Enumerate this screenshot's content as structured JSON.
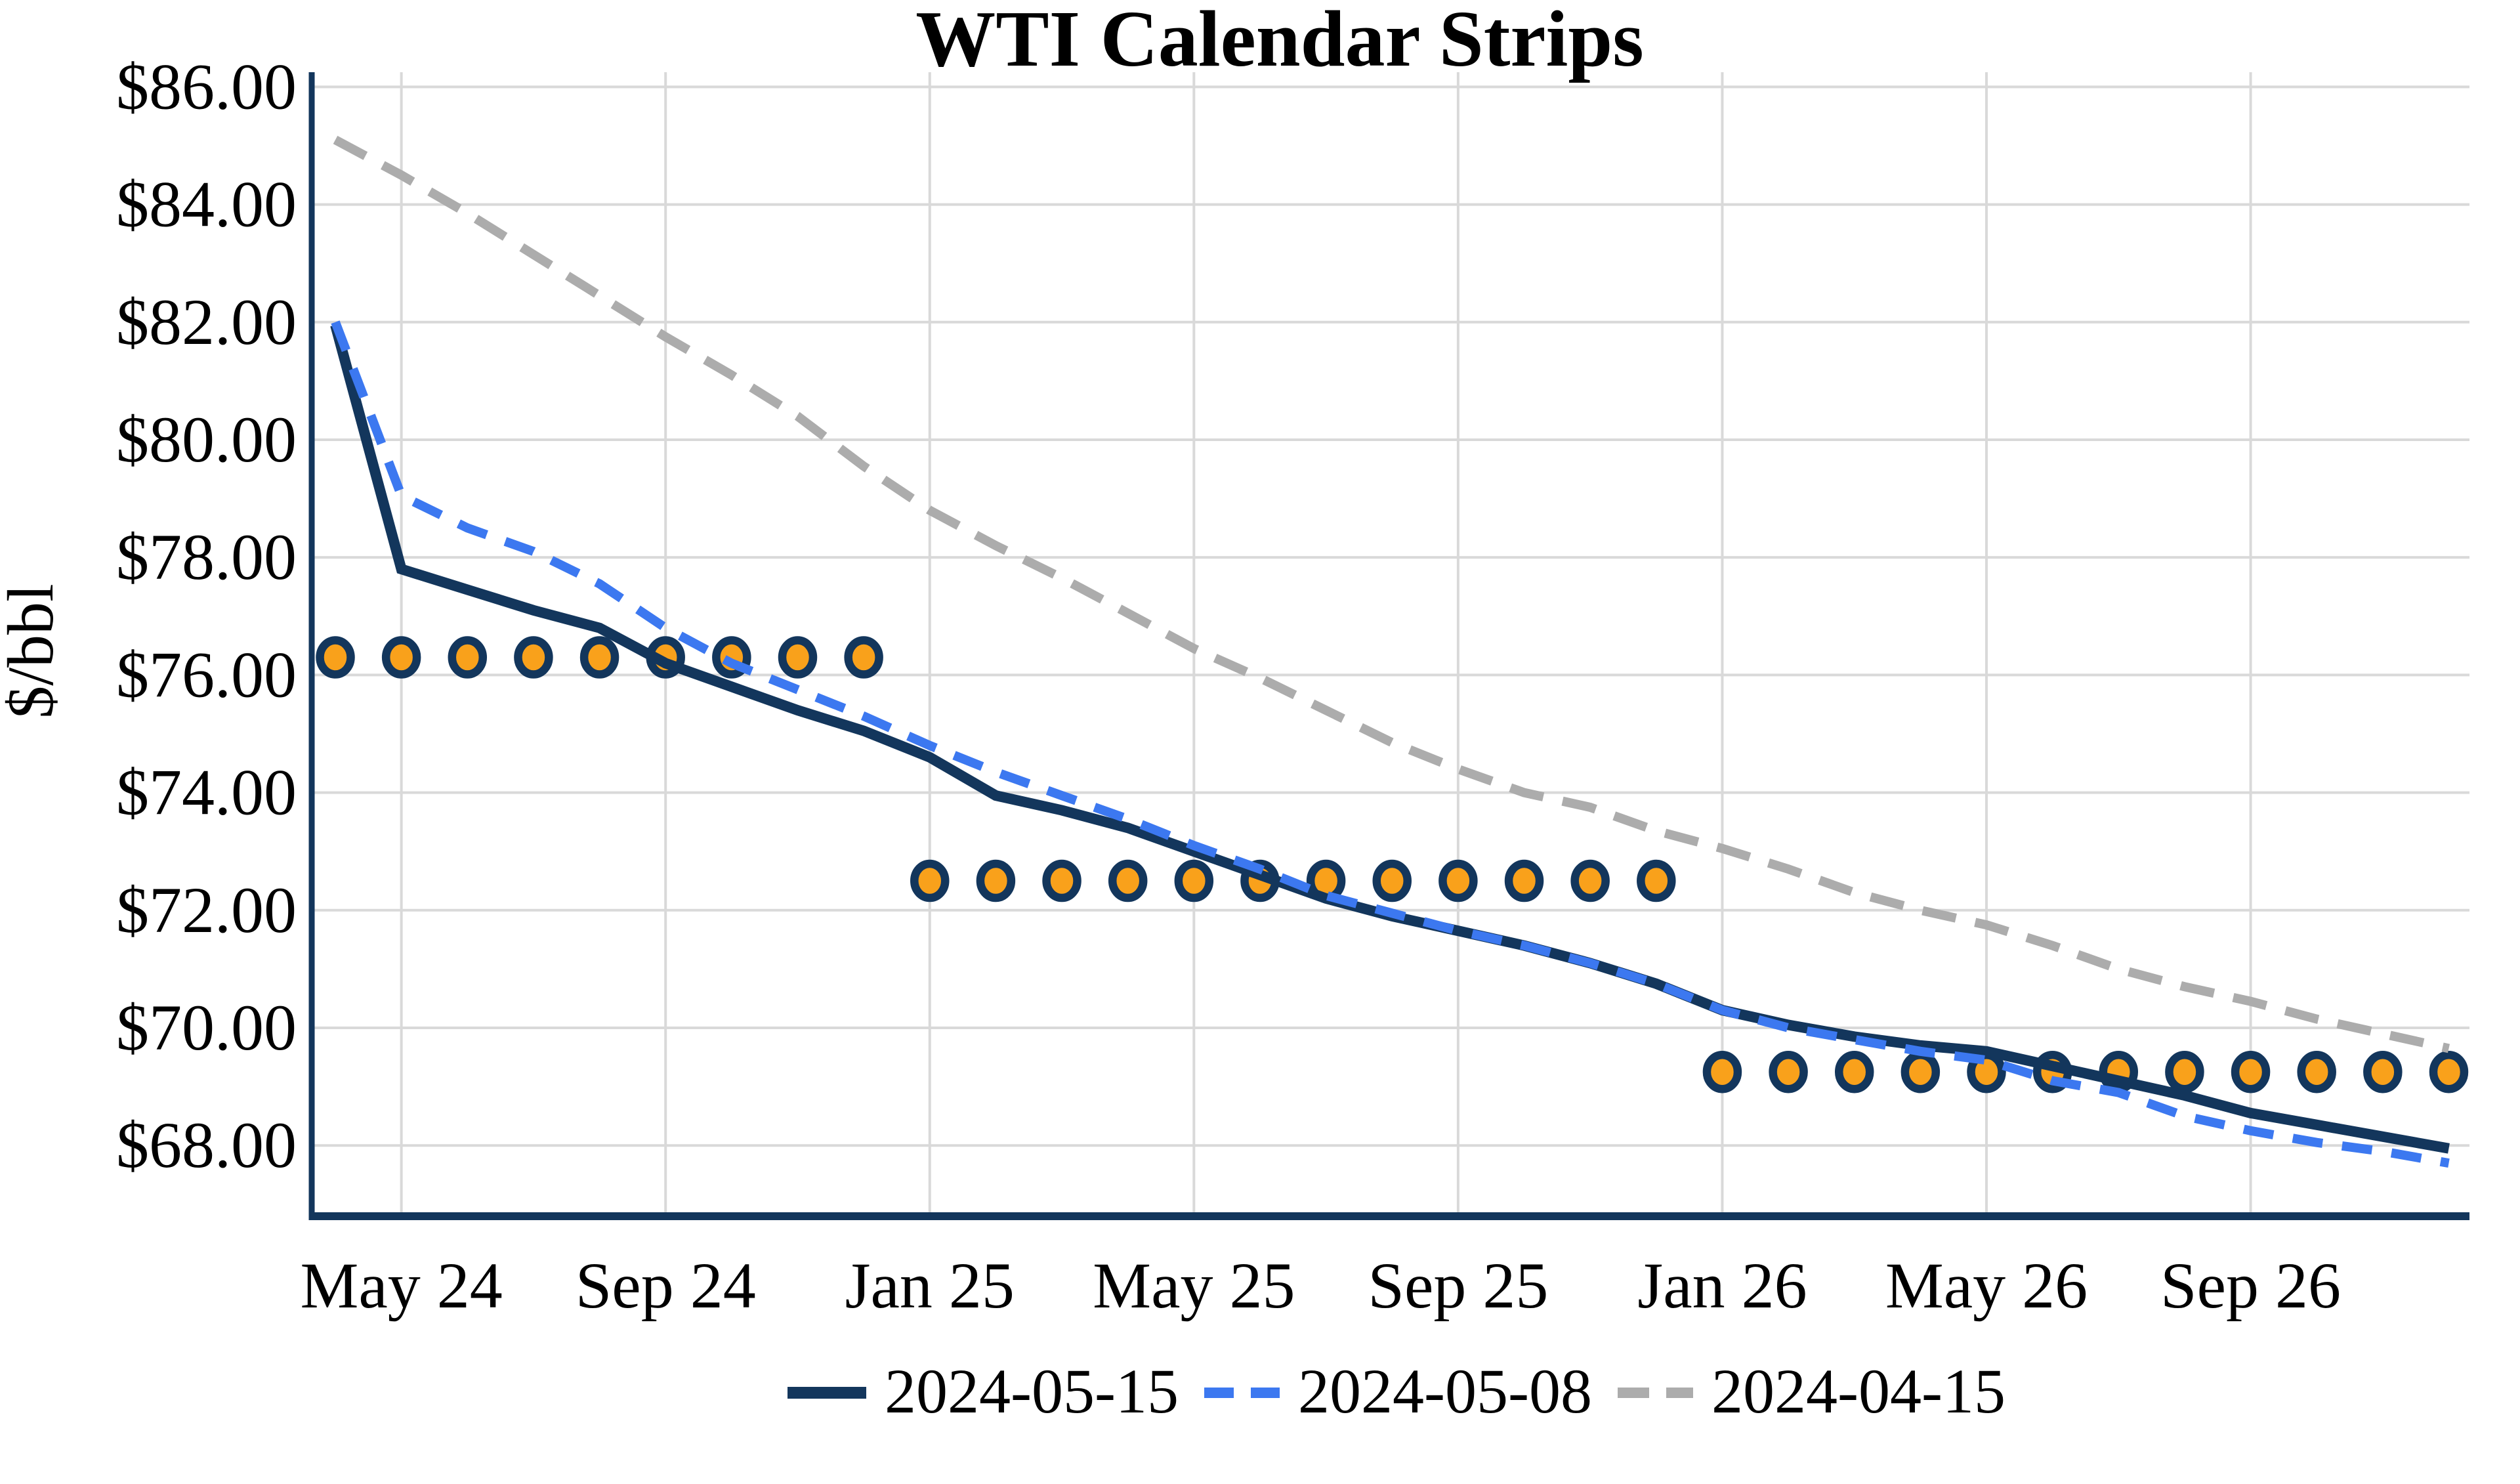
{
  "title": "WTI Calendar Strips",
  "y_axis": {
    "label": "$/bbl",
    "tick_labels": [
      "$86.00",
      "$84.00",
      "$82.00",
      "$80.00",
      "$78.00",
      "$76.00",
      "$74.00",
      "$72.00",
      "$70.00",
      "$68.00"
    ],
    "tick_values": [
      86,
      84,
      82,
      80,
      78,
      76,
      74,
      72,
      70,
      68
    ]
  },
  "x_axis": {
    "tick_labels": [
      "May 24",
      "Sep 24",
      "Jan 25",
      "May 25",
      "Sep 25",
      "Jan 26",
      "May 26",
      "Sep 26"
    ],
    "tick_month_indices": [
      1,
      5,
      9,
      13,
      17,
      21,
      25,
      29
    ]
  },
  "legend": [
    {
      "label": "2024-05-15",
      "color": "#13365C",
      "style": "solid"
    },
    {
      "label": "2024-05-08",
      "color": "#3C78F0",
      "style": "dashed"
    },
    {
      "label": "2024-04-15",
      "color": "#ACACAC",
      "style": "dashed"
    }
  ],
  "colors": {
    "navy": "#13365C",
    "blue": "#3C78F0",
    "gray": "#ACACAC",
    "orange": "#F9A11B",
    "gridline": "#D9D9D9",
    "background": "#FFFFFF",
    "text": "#000000"
  },
  "chart_data": {
    "type": "line",
    "title": "WTI Calendar Strips",
    "xlabel": "",
    "ylabel": "$/bbl",
    "ylim": [
      66.8,
      86.25
    ],
    "grid": true,
    "legend_position": "bottom-center",
    "x": [
      "Apr-24",
      "May-24",
      "Jun-24",
      "Jul-24",
      "Aug-24",
      "Sep-24",
      "Oct-24",
      "Nov-24",
      "Dec-24",
      "Jan-25",
      "Feb-25",
      "Mar-25",
      "Apr-25",
      "May-25",
      "Jun-25",
      "Jul-25",
      "Aug-25",
      "Sep-25",
      "Oct-25",
      "Nov-25",
      "Dec-25",
      "Jan-26",
      "Feb-26",
      "Mar-26",
      "Apr-26",
      "May-26",
      "Jun-26",
      "Jul-26",
      "Aug-26",
      "Sep-26",
      "Oct-26",
      "Nov-26",
      "Dec-26"
    ],
    "series": [
      {
        "name": "2024-05-15",
        "color": "#13365C",
        "style": "solid",
        "line_width": 16,
        "values": [
          81.95,
          77.8,
          77.45,
          77.1,
          76.8,
          76.2,
          75.8,
          75.4,
          75.05,
          74.6,
          73.95,
          73.7,
          73.4,
          73.0,
          72.6,
          72.2,
          71.9,
          71.65,
          71.4,
          71.1,
          70.75,
          70.3,
          70.05,
          69.85,
          69.7,
          69.6,
          69.35,
          69.1,
          68.85,
          68.55,
          68.35,
          68.15,
          67.95
        ]
      },
      {
        "name": "2024-05-08",
        "color": "#3C78F0",
        "style": "dashed",
        "line_width": 14,
        "values": [
          82.0,
          79.05,
          78.5,
          78.1,
          77.55,
          76.8,
          76.2,
          75.75,
          75.3,
          74.8,
          74.35,
          73.95,
          73.55,
          73.1,
          72.7,
          72.25,
          71.95,
          71.65,
          71.4,
          71.1,
          70.75,
          70.3,
          70.0,
          69.8,
          69.6,
          69.45,
          69.1,
          68.9,
          68.5,
          68.25,
          68.05,
          67.9,
          67.7
        ]
      },
      {
        "name": "2024-04-15",
        "color": "#ACACAC",
        "style": "dashed",
        "line_width": 14,
        "values": [
          85.1,
          84.5,
          83.85,
          83.15,
          82.45,
          81.75,
          81.1,
          80.4,
          79.55,
          78.8,
          78.2,
          77.65,
          77.05,
          76.45,
          75.95,
          75.4,
          74.85,
          74.4,
          74.0,
          73.75,
          73.35,
          73.05,
          72.7,
          72.3,
          72.0,
          71.75,
          71.4,
          71.0,
          70.7,
          70.45,
          70.15,
          69.9,
          69.65
        ]
      }
    ],
    "strip_markers": {
      "marker": "circle",
      "fill": "#F9A11B",
      "outline": "#13365C",
      "groups": [
        {
          "start_index": 0,
          "end_index": 8,
          "value": 76.3,
          "months": "Apr-24 to Dec-24"
        },
        {
          "start_index": 9,
          "end_index": 20,
          "value": 72.5,
          "months": "Jan-25 to Dec-25"
        },
        {
          "start_index": 21,
          "end_index": 32,
          "value": 69.25,
          "months": "Jan-26 to Dec-26"
        }
      ]
    }
  }
}
